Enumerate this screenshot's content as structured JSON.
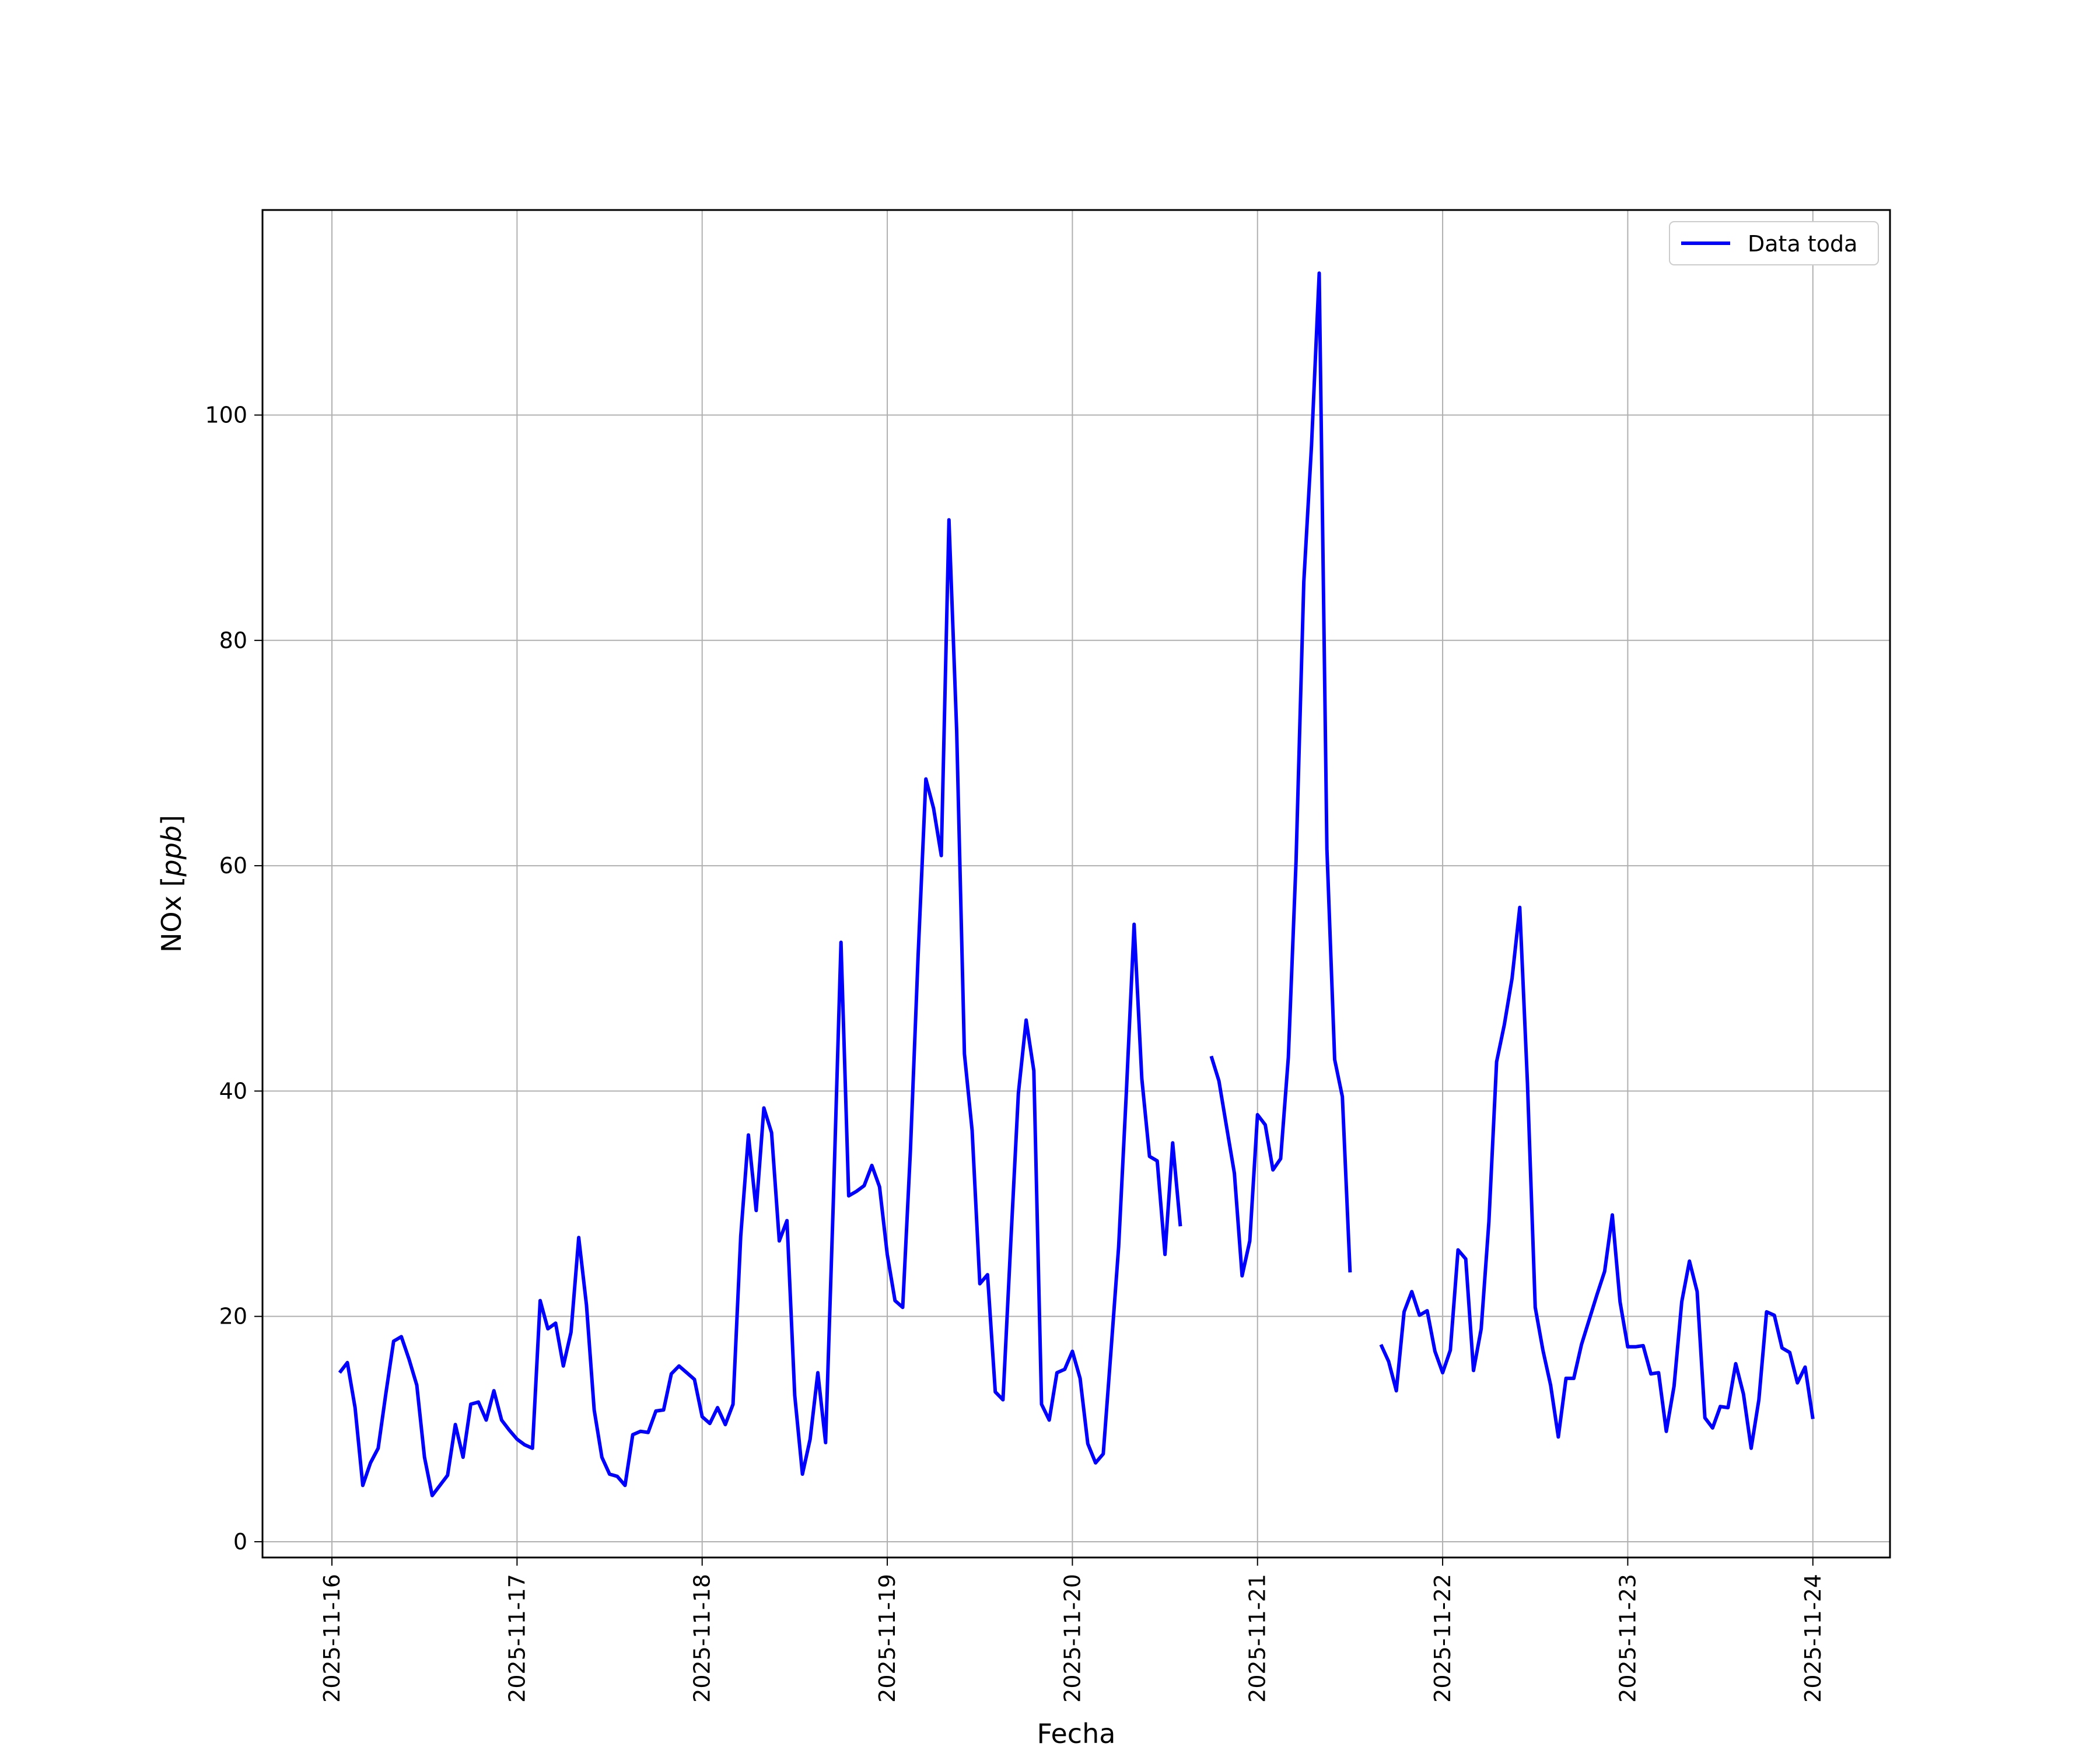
{
  "chart_data": {
    "type": "line",
    "title": "",
    "xlabel": "Fecha",
    "ylabel": "NOx [ppb]",
    "ylabel_parts": {
      "name": "NOx [",
      "unit": "ppb",
      "close": "]"
    },
    "xlim": [
      "2025-11-15T15:00",
      "2025-11-24T10:00"
    ],
    "ylim": [
      -1.4,
      118.2
    ],
    "x_ticks": [
      "2025-11-16",
      "2025-11-17",
      "2025-11-18",
      "2025-11-19",
      "2025-11-20",
      "2025-11-21",
      "2025-11-22",
      "2025-11-23",
      "2025-11-24"
    ],
    "y_ticks": [
      0,
      20,
      40,
      60,
      80,
      100
    ],
    "grid": true,
    "legend": {
      "placement": "top-right",
      "entries": [
        "Data toda"
      ]
    },
    "series": [
      {
        "name": "Data toda",
        "color": "#0000ff",
        "segments": [
          {
            "start": "2025-11-16T01:00",
            "step_hours": 1,
            "values": [
              15.0,
              15.9,
              11.9,
              5.0,
              7.0,
              8.3,
              13.2,
              17.8,
              18.2,
              16.2,
              13.9,
              7.5,
              4.1,
              5.0,
              5.9,
              10.4,
              7.5,
              12.2,
              12.4,
              10.8,
              13.4,
              10.8,
              9.9,
              9.1,
              8.6,
              8.3,
              21.4,
              18.9,
              19.4,
              15.6,
              18.6,
              27.0,
              21.0,
              11.7,
              7.5,
              6.0,
              5.8,
              5.0,
              9.5,
              9.8,
              9.7,
              11.6,
              11.7,
              14.9,
              15.6,
              15.0,
              14.4,
              11.1,
              10.5,
              11.9,
              10.4,
              12.2,
              27.1,
              36.1,
              29.4,
              38.5,
              36.3,
              26.7,
              28.5,
              13.0,
              6.0,
              9.1,
              15.0,
              8.8,
              30.1,
              53.2,
              30.7,
              31.1,
              31.6,
              33.4,
              31.5,
              25.5,
              21.4,
              20.8,
              34.7,
              52.0,
              67.7,
              65.1,
              60.9,
              90.7,
              72.0,
              43.3,
              36.5,
              22.9,
              23.7,
              13.3,
              12.6,
              26.4,
              39.8,
              46.3,
              41.8,
              12.2,
              10.8,
              15.0,
              15.3,
              16.9,
              14.5,
              8.7,
              7.0,
              7.8,
              16.9,
              26.2,
              39.9,
              54.8,
              41.1,
              34.2,
              33.8,
              25.5,
              35.4,
              28.0
            ]
          },
          {
            "start": "2025-11-20T18:00",
            "step_hours": 1,
            "values": [
              43.1,
              40.9,
              36.8,
              32.7,
              23.6,
              26.7,
              37.9,
              37.0,
              33.0,
              34.0,
              43.0,
              60.4,
              85.2,
              97.3,
              112.6,
              61.5,
              42.8,
              39.5,
              23.9
            ]
          },
          {
            "start": "2025-11-21T16:00",
            "step_hours": 1,
            "values": [
              17.5,
              16.0,
              13.4,
              20.4,
              22.2,
              20.1,
              20.5,
              16.9,
              15.0,
              17.0,
              25.9,
              25.1,
              15.2,
              18.9,
              28.4,
              42.6,
              45.9,
              50.0,
              56.3,
              40.7,
              20.8,
              17.0,
              13.9,
              9.3,
              14.5,
              14.5,
              17.5,
              19.7,
              21.9,
              24.0,
              29.0,
              21.3,
              17.3,
              17.3,
              17.4,
              14.9,
              15.0,
              9.8,
              13.8,
              21.3,
              24.9,
              22.2,
              11.0,
              10.1,
              12.0,
              11.9,
              15.8,
              13.1,
              8.3,
              12.6,
              20.4,
              20.1,
              17.2,
              16.8,
              14.1,
              15.5,
              10.9
            ]
          }
        ]
      }
    ]
  }
}
